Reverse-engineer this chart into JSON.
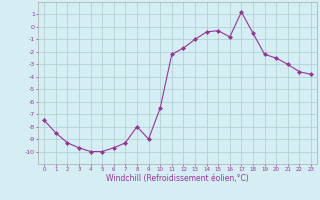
{
  "x": [
    0,
    1,
    2,
    3,
    4,
    5,
    6,
    7,
    8,
    9,
    10,
    11,
    12,
    13,
    14,
    15,
    16,
    17,
    18,
    19,
    20,
    21,
    22,
    23
  ],
  "y": [
    -7.5,
    -8.5,
    -9.3,
    -9.7,
    -10.0,
    -10.0,
    -9.7,
    -9.3,
    -8.0,
    -9.0,
    -6.5,
    -2.2,
    -1.7,
    -1.0,
    -0.4,
    -0.3,
    -0.8,
    1.2,
    -0.5,
    -2.2,
    -2.5,
    -3.0,
    -3.6,
    -3.8
  ],
  "line_color": "#993399",
  "marker": "D",
  "marker_size": 2,
  "bg_color": "#d4eef4",
  "grid_color": "#aacccc",
  "xlabel": "Windchill (Refroidissement éolien,°C)",
  "ylim": [
    -11,
    2
  ],
  "yticks": [
    1,
    0,
    -1,
    -2,
    -3,
    -4,
    -5,
    -6,
    -7,
    -8,
    -9,
    -10
  ],
  "xticks": [
    0,
    1,
    2,
    3,
    4,
    5,
    6,
    7,
    8,
    9,
    10,
    11,
    12,
    13,
    14,
    15,
    16,
    17,
    18,
    19,
    20,
    21,
    22,
    23
  ]
}
